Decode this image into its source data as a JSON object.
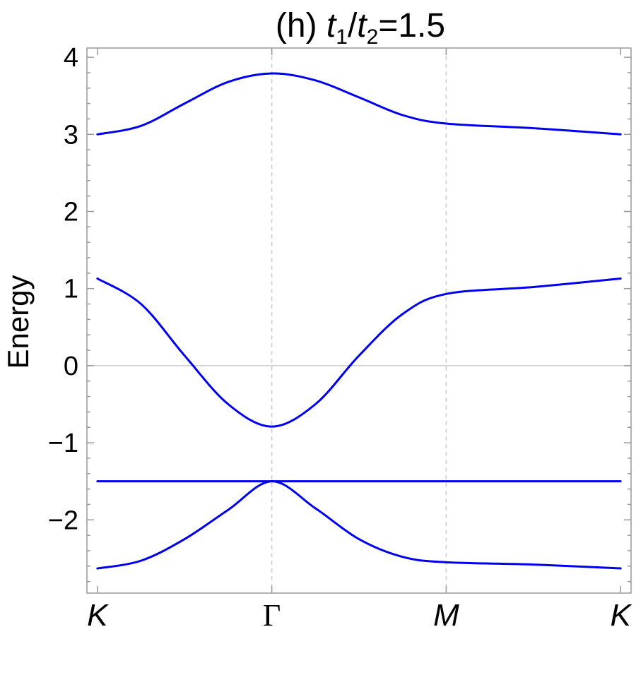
{
  "chart_data": {
    "type": "line",
    "title_prefix": "(h) ",
    "title_t1": "t",
    "title_sub1": "1",
    "title_slash": "/",
    "title_t2": "t",
    "title_sub2": "2",
    "title_suffix": "=1.5",
    "ylabel": "Energy",
    "xlabel": "",
    "ylim": [
      -2.95,
      4.12
    ],
    "y_ticks": [
      {
        "value": 4,
        "label": "4"
      },
      {
        "value": 3,
        "label": "3"
      },
      {
        "value": 2,
        "label": "2"
      },
      {
        "value": 1,
        "label": "1"
      },
      {
        "value": 0,
        "label": "0"
      },
      {
        "value": -1,
        "label": "−1"
      },
      {
        "value": -2,
        "label": "−2"
      }
    ],
    "x_ticks": [
      {
        "position": 0,
        "label": "K",
        "upright": false
      },
      {
        "position": 1,
        "label": "Γ",
        "upright": true
      },
      {
        "position": 2,
        "label": "M",
        "upright": false
      },
      {
        "position": 3,
        "label": "K",
        "upright": false
      }
    ],
    "xlim": [
      -0.06,
      3.06
    ],
    "zero_line": true,
    "vertical_gridlines_at": [
      1,
      2
    ],
    "line_color": "#0000ee",
    "grid_color": "#cccccc",
    "frame_color": "#999999",
    "series": [
      {
        "x": [
          0,
          0.25,
          0.5,
          0.75,
          1,
          1.25,
          1.5,
          1.75,
          2,
          2.5,
          3
        ],
        "y": [
          3.0,
          3.11,
          3.4,
          3.68,
          3.79,
          3.7,
          3.48,
          3.25,
          3.14,
          3.08,
          3.0
        ]
      },
      {
        "x": [
          0,
          0.25,
          0.5,
          0.75,
          1,
          1.25,
          1.5,
          1.75,
          2,
          2.5,
          3
        ],
        "y": [
          1.13,
          0.8,
          0.13,
          -0.5,
          -0.79,
          -0.5,
          0.13,
          0.67,
          0.93,
          1.02,
          1.13
        ]
      },
      {
        "x": [
          0,
          1,
          2,
          3
        ],
        "y": [
          -1.5,
          -1.5,
          -1.5,
          -1.5
        ]
      },
      {
        "x": [
          0,
          0.25,
          0.5,
          0.75,
          1,
          1.25,
          1.5,
          1.75,
          2,
          2.5,
          3
        ],
        "y": [
          -2.63,
          -2.53,
          -2.25,
          -1.87,
          -1.5,
          -1.85,
          -2.25,
          -2.48,
          -2.55,
          -2.58,
          -2.63
        ]
      }
    ]
  }
}
